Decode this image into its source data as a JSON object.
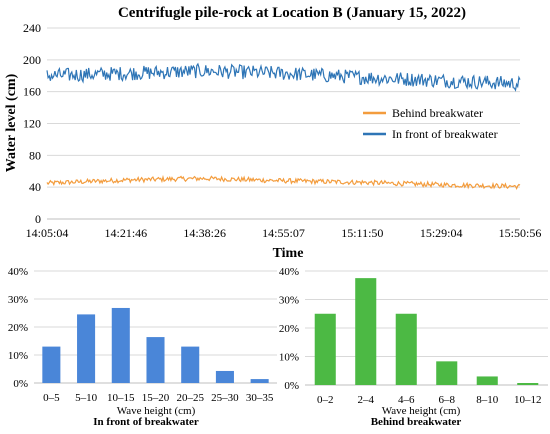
{
  "chart_data": [
    {
      "type": "line",
      "title": "Centrifugle pile-rock at Location B (January 15, 2022)",
      "xlabel": "Time",
      "ylabel": "Water level (cm)",
      "ylim": [
        0,
        240
      ],
      "yticks": [
        0,
        40,
        80,
        120,
        160,
        200,
        240
      ],
      "xtick_labels": [
        "14:05:04",
        "14:21:46",
        "14:38:26",
        "14:55:07",
        "15:11:50",
        "15:29:04",
        "15:50:56"
      ],
      "grid": true,
      "legend_position": "right-middle",
      "series": [
        {
          "name": "Behind breakwater",
          "color": "#F39C3D",
          "x": [
            "14:05:04",
            "14:21:46",
            "14:38:26",
            "14:55:07",
            "15:11:50",
            "15:29:04",
            "15:50:56"
          ],
          "values": [
            45,
            49,
            51,
            48,
            46,
            43,
            41
          ]
        },
        {
          "name": "In front of breakwater",
          "color": "#2E75B6",
          "x": [
            "14:05:04",
            "14:21:46",
            "14:38:26",
            "14:55:07",
            "15:11:50",
            "15:29:04",
            "15:50:56"
          ],
          "values": [
            180,
            183,
            186,
            183,
            178,
            174,
            170
          ]
        }
      ]
    },
    {
      "type": "bar",
      "title": "In front of breakwater",
      "xlabel": "Wave height (cm)",
      "ylabel": "",
      "categories": [
        "0–5",
        "5–10",
        "10–15",
        "15–20",
        "20–25",
        "25–30",
        "30–35"
      ],
      "values": [
        13,
        24.5,
        26.8,
        16.4,
        13,
        4.3,
        1.4
      ],
      "ylim": [
        0,
        40
      ],
      "ytick_labels": [
        "0%",
        "10%",
        "20%",
        "30%",
        "40%"
      ],
      "grid": true,
      "color": "#4A86D8"
    },
    {
      "type": "bar",
      "title": "Behind breakwater",
      "xlabel": "Wave height (cm)",
      "ylabel": "",
      "categories": [
        "0–2",
        "2–4",
        "4–6",
        "6–8",
        "8–10",
        "10–12"
      ],
      "values": [
        25,
        37.5,
        25,
        8.3,
        3,
        0.7
      ],
      "ylim": [
        0,
        40
      ],
      "ytick_labels": [
        "0%",
        "10%",
        "20%",
        "30%",
        "40%"
      ],
      "grid": true,
      "color": "#4CB944"
    }
  ]
}
